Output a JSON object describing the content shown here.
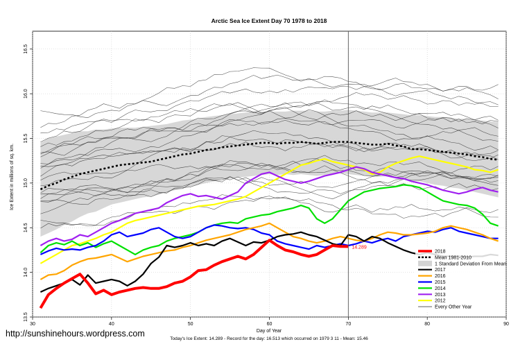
{
  "chart_data": {
    "type": "line",
    "title": "Arctic Sea Ice Extent Day 70 1978 to 2018",
    "xlabel": "Day of Year",
    "ylabel": "Ice Extent in millions of sq. km.",
    "xlim": [
      30,
      90
    ],
    "ylim": [
      13.5,
      16.7
    ],
    "xticks": [
      "30",
      "40",
      "50",
      "60",
      "70",
      "80",
      "90"
    ],
    "yticks": [
      "13.5",
      "14.0",
      "14.5",
      "15.0",
      "15.5",
      "16.0",
      "16.5"
    ],
    "grid": true,
    "legend_position": "bottom-right",
    "vertical_marker_day": 70,
    "current_value_label": "14.289",
    "footer": "Today's Ice Extent: 14.289  - Record for the day: 16.513 which occurred on 1979 3 11  - Mean: 15.46",
    "watermark": "http://sunshinehours.wordpress.com",
    "days": [
      31,
      32,
      33,
      34,
      35,
      36,
      37,
      38,
      39,
      40,
      41,
      42,
      43,
      44,
      45,
      46,
      47,
      48,
      49,
      50,
      51,
      52,
      53,
      54,
      55,
      56,
      57,
      58,
      59,
      60,
      61,
      62,
      63,
      64,
      65,
      66,
      67,
      68,
      69,
      70,
      71,
      72,
      73,
      74,
      75,
      76,
      77,
      78,
      79,
      80,
      81,
      82,
      83,
      84,
      85,
      86,
      87,
      88,
      89
    ],
    "mean_1981_2010": [
      14.93,
      14.97,
      15.0,
      15.04,
      15.07,
      15.1,
      15.12,
      15.14,
      15.16,
      15.18,
      15.2,
      15.21,
      15.22,
      15.23,
      15.24,
      15.26,
      15.28,
      15.3,
      15.32,
      15.33,
      15.35,
      15.37,
      15.38,
      15.4,
      15.41,
      15.42,
      15.43,
      15.44,
      15.45,
      15.45,
      15.44,
      15.45,
      15.45,
      15.46,
      15.45,
      15.44,
      15.45,
      15.46,
      15.46,
      15.46,
      15.45,
      15.44,
      15.43,
      15.43,
      15.44,
      15.42,
      15.41,
      15.38,
      15.38,
      15.37,
      15.36,
      15.35,
      15.34,
      15.33,
      15.32,
      15.3,
      15.29,
      15.27,
      15.26
    ],
    "std_band_upper": [
      15.45,
      15.5,
      15.52,
      15.54,
      15.56,
      15.58,
      15.58,
      15.6,
      15.6,
      15.61,
      15.62,
      15.62,
      15.62,
      15.63,
      15.64,
      15.65,
      15.66,
      15.68,
      15.7,
      15.71,
      15.72,
      15.74,
      15.75,
      15.76,
      15.77,
      15.78,
      15.79,
      15.8,
      15.8,
      15.8,
      15.8,
      15.8,
      15.81,
      15.81,
      15.81,
      15.8,
      15.8,
      15.81,
      15.81,
      15.82,
      15.81,
      15.8,
      15.79,
      15.79,
      15.79,
      15.78,
      15.77,
      15.76,
      15.76,
      15.75,
      15.74,
      15.74,
      15.73,
      15.72,
      15.72,
      15.71,
      15.7,
      15.69,
      15.68
    ],
    "std_band_lower": [
      14.4,
      14.44,
      14.48,
      14.53,
      14.57,
      14.62,
      14.66,
      14.68,
      14.72,
      14.76,
      14.78,
      14.8,
      14.82,
      14.84,
      14.85,
      14.87,
      14.9,
      14.92,
      14.94,
      14.96,
      14.98,
      15.0,
      15.02,
      15.04,
      15.05,
      15.06,
      15.07,
      15.08,
      15.09,
      15.1,
      15.09,
      15.1,
      15.09,
      15.1,
      15.09,
      15.08,
      15.09,
      15.1,
      15.11,
      15.1,
      15.09,
      15.08,
      15.07,
      15.07,
      15.08,
      15.06,
      15.05,
      15.02,
      15.02,
      15.0,
      14.98,
      14.97,
      14.95,
      14.94,
      14.92,
      14.9,
      14.88,
      14.86,
      14.84
    ],
    "series": [
      {
        "name": "2018",
        "color": "#ff0000",
        "values": [
          13.6,
          13.75,
          13.82,
          13.88,
          13.93,
          13.98,
          13.88,
          13.76,
          13.8,
          13.75,
          13.78,
          13.8,
          13.82,
          13.83,
          13.82,
          13.82,
          13.84,
          13.88,
          13.9,
          13.95,
          14.02,
          14.03,
          14.08,
          14.12,
          14.15,
          14.18,
          14.15,
          14.2,
          14.28,
          14.36,
          14.3,
          14.25,
          14.23,
          14.2,
          14.18,
          14.2,
          14.25,
          14.3,
          14.29,
          14.289
        ]
      },
      {
        "name": "2017",
        "color": "#000000",
        "values": [
          13.78,
          13.82,
          13.85,
          13.88,
          13.92,
          13.86,
          13.97,
          13.88,
          13.9,
          13.92,
          13.9,
          13.85,
          13.9,
          13.98,
          14.1,
          14.17,
          14.3,
          14.28,
          14.3,
          14.33,
          14.3,
          14.32,
          14.3,
          14.35,
          14.38,
          14.34,
          14.3,
          14.34,
          14.33,
          14.36,
          14.4,
          14.42,
          14.43,
          14.45,
          14.42,
          14.4,
          14.36,
          14.32,
          14.3,
          14.42,
          14.4,
          14.35,
          14.4,
          14.38,
          14.33,
          14.29,
          14.25,
          14.22,
          14.2,
          14.22,
          14.2,
          14.18,
          14.18,
          14.18,
          14.17,
          14.18,
          14.18,
          14.2,
          14.19
        ]
      },
      {
        "name": "2016",
        "color": "#ffa500",
        "values": [
          13.92,
          13.97,
          13.98,
          14.02,
          14.08,
          14.12,
          14.15,
          14.16,
          14.18,
          14.2,
          14.16,
          14.12,
          14.15,
          14.18,
          14.2,
          14.22,
          14.24,
          14.25,
          14.28,
          14.3,
          14.33,
          14.36,
          14.38,
          14.4,
          14.42,
          14.45,
          14.48,
          14.5,
          14.52,
          14.55,
          14.5,
          14.45,
          14.4,
          14.38,
          14.35,
          14.33,
          14.35,
          14.38,
          14.4,
          14.38,
          14.36,
          14.35,
          14.38,
          14.42,
          14.45,
          14.44,
          14.42,
          14.42,
          14.43,
          14.44,
          14.46,
          14.5,
          14.52,
          14.5,
          14.48,
          14.45,
          14.42,
          14.38,
          14.35
        ]
      },
      {
        "name": "2015",
        "color": "#0000ff",
        "values": [
          14.2,
          14.24,
          14.27,
          14.25,
          14.26,
          14.25,
          14.28,
          14.3,
          14.35,
          14.42,
          14.45,
          14.4,
          14.42,
          14.44,
          14.48,
          14.5,
          14.45,
          14.4,
          14.38,
          14.4,
          14.45,
          14.5,
          14.53,
          14.52,
          14.5,
          14.49,
          14.5,
          14.48,
          14.44,
          14.42,
          14.35,
          14.32,
          14.3,
          14.28,
          14.26,
          14.3,
          14.28,
          14.3,
          14.32,
          14.3,
          14.32,
          14.35,
          14.33,
          14.36,
          14.38,
          14.35,
          14.4,
          14.42,
          14.44,
          14.46,
          14.45,
          14.48,
          14.5,
          14.46,
          14.44,
          14.42,
          14.4,
          14.38,
          14.38
        ]
      },
      {
        "name": "2014",
        "color": "#00e000",
        "values": [
          14.22,
          14.3,
          14.33,
          14.31,
          14.35,
          14.3,
          14.33,
          14.28,
          14.32,
          14.35,
          14.3,
          14.25,
          14.2,
          14.25,
          14.28,
          14.3,
          14.35,
          14.38,
          14.4,
          14.42,
          14.45,
          14.5,
          14.53,
          14.55,
          14.56,
          14.55,
          14.6,
          14.62,
          14.64,
          14.65,
          14.68,
          14.7,
          14.72,
          14.75,
          14.72,
          14.6,
          14.55,
          14.6,
          14.7,
          14.8,
          14.85,
          14.9,
          14.92,
          14.94,
          14.95,
          14.96,
          14.98,
          14.97,
          14.95,
          14.9,
          14.85,
          14.8,
          14.78,
          14.76,
          14.75,
          14.72,
          14.65,
          14.55,
          14.52
        ]
      },
      {
        "name": "2013",
        "color": "#a020f0",
        "values": [
          14.3,
          14.35,
          14.38,
          14.35,
          14.37,
          14.42,
          14.4,
          14.45,
          14.5,
          14.55,
          14.58,
          14.62,
          14.66,
          14.68,
          14.7,
          14.72,
          14.78,
          14.82,
          14.86,
          14.88,
          14.85,
          14.86,
          14.84,
          14.82,
          14.86,
          14.9,
          15.0,
          15.05,
          15.1,
          15.12,
          15.08,
          15.04,
          15.02,
          15.0,
          15.02,
          15.05,
          15.08,
          15.1,
          15.12,
          15.15,
          15.18,
          15.16,
          15.12,
          15.1,
          15.08,
          15.06,
          15.05,
          15.02,
          15.0,
          14.98,
          14.95,
          14.92,
          14.9,
          14.88,
          14.9,
          14.93,
          14.95,
          14.92,
          14.9
        ]
      },
      {
        "name": "2012",
        "color": "#ffff00",
        "values": [
          14.1,
          14.15,
          14.2,
          14.25,
          14.3,
          14.32,
          14.35,
          14.38,
          14.42,
          14.45,
          14.5,
          14.55,
          14.58,
          14.6,
          14.62,
          14.64,
          14.66,
          14.68,
          14.7,
          14.72,
          14.74,
          14.75,
          14.76,
          14.78,
          14.8,
          14.82,
          14.85,
          14.9,
          14.95,
          15.0,
          15.05,
          15.1,
          15.15,
          15.2,
          15.22,
          15.25,
          15.27,
          15.24,
          15.22,
          15.2,
          15.18,
          15.15,
          15.1,
          15.12,
          15.18,
          15.22,
          15.25,
          15.28,
          15.3,
          15.28,
          15.26,
          15.24,
          15.22,
          15.2,
          15.18,
          15.15,
          15.14,
          15.12,
          15.15
        ]
      }
    ],
    "legend": [
      {
        "label": "2018",
        "style": "line",
        "color": "#ff0000"
      },
      {
        "label": "Mean 1981-2010",
        "style": "dashed",
        "color": "#000000"
      },
      {
        "label": "1 Standard Deviation From Mean",
        "style": "fill",
        "color": "#d3d3d3"
      },
      {
        "label": "2017",
        "style": "line",
        "color": "#000000"
      },
      {
        "label": "2016",
        "style": "line",
        "color": "#ffa500"
      },
      {
        "label": "2015",
        "style": "line",
        "color": "#0000ff"
      },
      {
        "label": "2014",
        "style": "line",
        "color": "#00e000"
      },
      {
        "label": "2013",
        "style": "line",
        "color": "#a020f0"
      },
      {
        "label": "2012",
        "style": "line",
        "color": "#ffff00"
      },
      {
        "label": "Every Other Year",
        "style": "thin",
        "color": "#000000"
      }
    ]
  }
}
